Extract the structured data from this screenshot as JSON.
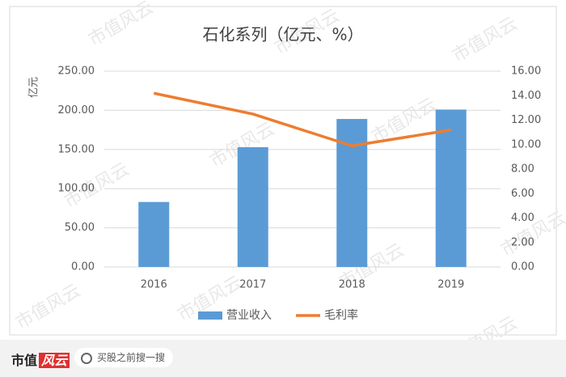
{
  "chart_data": {
    "type": "bar",
    "title": "石化系列（亿元、%）",
    "y_label": "亿元",
    "categories": [
      "2016",
      "2017",
      "2018",
      "2019"
    ],
    "series": [
      {
        "name": "营业收入",
        "color": "#5b9bd5",
        "values": [
          83,
          153,
          189,
          201
        ]
      },
      {
        "name": "毛利率",
        "color": "#ed7d31",
        "values": [
          14.2,
          12.5,
          9.9,
          11.2
        ],
        "axis": "y2",
        "type": "line"
      }
    ],
    "ylim": [
      0,
      250
    ],
    "yticks": [
      {
        "value": 0,
        "label": "0.00"
      },
      {
        "value": 50,
        "label": "50.00"
      },
      {
        "value": 100,
        "label": "100.00"
      },
      {
        "value": 150,
        "label": "150.00"
      },
      {
        "value": 200,
        "label": "200.00"
      },
      {
        "value": 250,
        "label": "250.00"
      }
    ],
    "y2lim": [
      0,
      16
    ],
    "y2ticks": [
      {
        "value": 0,
        "label": "0.00"
      },
      {
        "value": 2,
        "label": "2.00"
      },
      {
        "value": 4,
        "label": "4.00"
      },
      {
        "value": 6,
        "label": "6.00"
      },
      {
        "value": 8,
        "label": "8.00"
      },
      {
        "value": 10,
        "label": "10.00"
      },
      {
        "value": 12,
        "label": "12.00"
      },
      {
        "value": 14,
        "label": "14.00"
      },
      {
        "value": 16,
        "label": "16.00"
      }
    ],
    "grid": true,
    "legend": "bottom"
  },
  "watermark": "市值风云",
  "footer": {
    "logo": [
      "市值",
      "风云"
    ],
    "search": "买股之前搜一搜"
  }
}
